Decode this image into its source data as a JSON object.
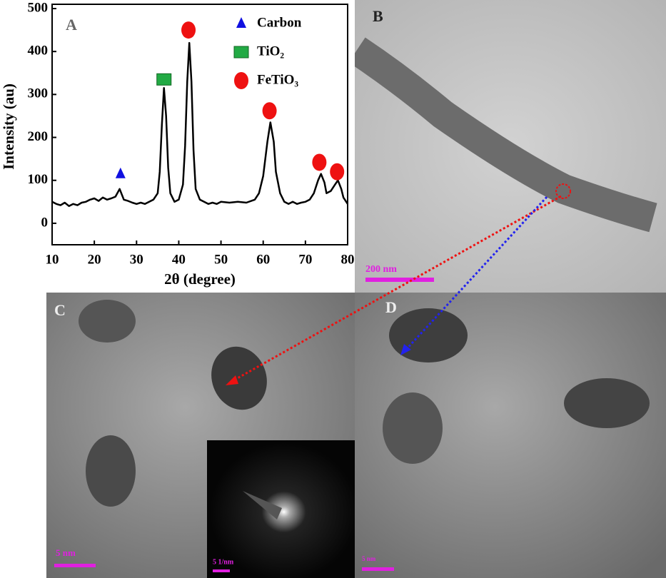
{
  "chart_data": {
    "type": "line",
    "xlabel": "2θ (degree)",
    "ylabel": "Intensity (au)",
    "x": [
      10,
      11,
      12,
      13,
      14,
      15,
      16,
      17,
      18,
      19,
      20,
      21,
      22,
      23,
      24,
      25,
      26,
      27,
      28,
      29,
      30,
      31,
      32,
      33,
      34,
      35,
      35.5,
      36,
      36.5,
      37,
      37.5,
      38,
      39,
      40,
      41,
      41.5,
      42,
      42.5,
      43,
      43.5,
      44,
      45,
      46,
      47,
      48,
      49,
      50,
      52,
      54,
      56,
      58,
      59,
      60,
      61,
      61.7,
      62.5,
      63,
      64,
      65,
      66,
      67,
      68,
      69,
      70,
      71,
      72,
      73,
      73.7,
      74.5,
      75,
      76,
      77,
      77.7,
      78.5,
      79,
      80
    ],
    "values": [
      50,
      45,
      42,
      48,
      40,
      45,
      42,
      48,
      50,
      55,
      58,
      52,
      60,
      55,
      58,
      62,
      80,
      55,
      52,
      48,
      45,
      48,
      45,
      50,
      55,
      70,
      120,
      230,
      315,
      250,
      130,
      70,
      50,
      55,
      90,
      180,
      330,
      420,
      330,
      170,
      80,
      55,
      50,
      45,
      48,
      45,
      50,
      48,
      50,
      48,
      55,
      70,
      110,
      190,
      235,
      190,
      120,
      70,
      50,
      45,
      50,
      45,
      48,
      50,
      55,
      70,
      100,
      115,
      95,
      70,
      75,
      90,
      100,
      80,
      60,
      45
    ],
    "color": "#000000",
    "xlim": [
      10,
      80
    ],
    "ylim": [
      -50,
      500
    ],
    "xticks": [
      10,
      20,
      30,
      40,
      50,
      60,
      70,
      80
    ],
    "yticks": [
      0,
      100,
      200,
      300,
      400,
      500
    ],
    "markers": [
      {
        "name": "Carbon",
        "color": "#1010e0",
        "shape": "triangle",
        "x": [
          26.2
        ],
        "y": [
          115
        ]
      },
      {
        "name": "TiO₂",
        "color": "#22aa44",
        "shape": "square",
        "x": [
          36.5
        ],
        "y": [
          335
        ]
      },
      {
        "name": "FeTiO₃",
        "color": "#ee1111",
        "shape": "circle",
        "x": [
          42.3,
          61.5,
          73.3,
          77.5
        ],
        "y": [
          450,
          262,
          142,
          120
        ]
      }
    ]
  },
  "panels": {
    "a": "A",
    "b": "B",
    "c": "C",
    "d": "D"
  },
  "scale_bars": {
    "b": "200 nm",
    "c": "5 nm",
    "inset": "5 1/nm",
    "d": "5 nm"
  }
}
